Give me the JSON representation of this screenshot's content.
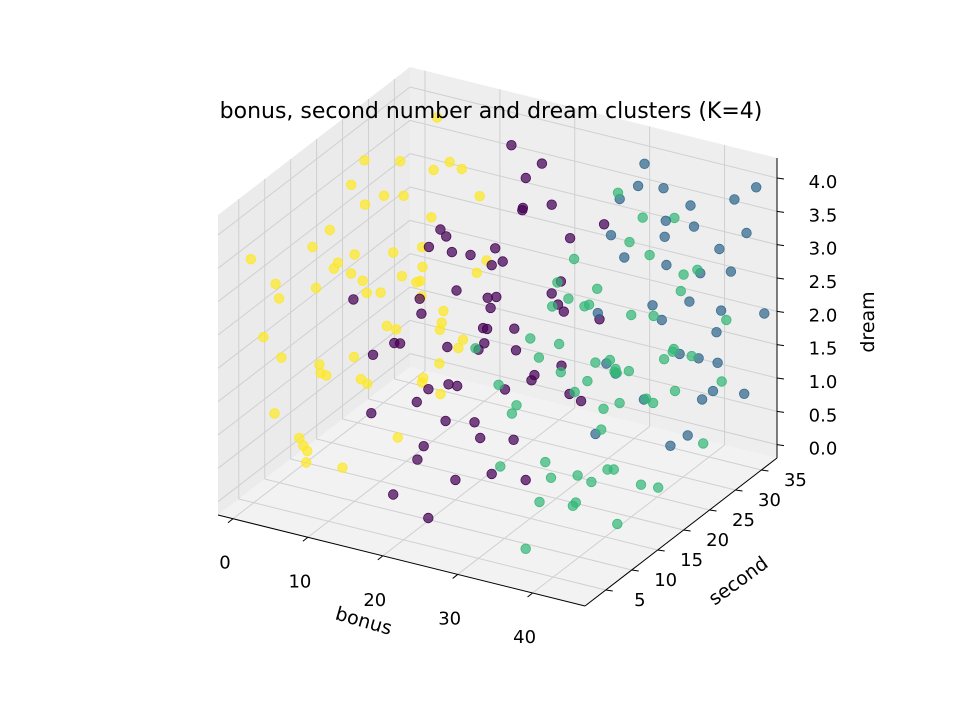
{
  "chart_data": {
    "type": "scatter3d",
    "title": "bonus, second number and dream clusters (K=4)",
    "xlabel": "bonus",
    "ylabel": "second",
    "zlabel": "dream",
    "xlim": [
      -2,
      47
    ],
    "ylim": [
      1,
      38
    ],
    "zlim": [
      -0.2,
      4.3
    ],
    "xticks": [
      "0",
      "10",
      "20",
      "30",
      "40"
    ],
    "yticks": [
      "5",
      "10",
      "15",
      "20",
      "25",
      "30",
      "35"
    ],
    "zticks": [
      "0.0",
      "0.5",
      "1.0",
      "1.5",
      "2.0",
      "2.5",
      "3.0",
      "3.5",
      "4.0"
    ],
    "grid": true,
    "legend": "none",
    "colors": {
      "cluster_0": "#440154",
      "cluster_1": "#31688e",
      "cluster_2": "#35b779",
      "cluster_3": "#fde725",
      "pane": "#f2f2f2",
      "grid": "#d0d0d0"
    },
    "series": [
      {
        "color_key": "cluster_3",
        "points": [
          [
            1,
            3,
            3.6
          ],
          [
            2,
            7,
            2.8
          ],
          [
            3,
            12,
            3.3
          ],
          [
            4,
            18,
            3.9
          ],
          [
            1,
            25,
            3.1
          ],
          [
            5,
            32,
            2.6
          ],
          [
            3,
            36,
            3.8
          ],
          [
            6,
            9,
            1.8
          ],
          [
            2,
            15,
            1.2
          ],
          [
            4,
            21,
            2.1
          ],
          [
            1,
            28,
            1.6
          ],
          [
            5,
            34,
            0.9
          ],
          [
            7,
            5,
            0.6
          ],
          [
            3,
            11,
            0.3
          ],
          [
            6,
            17,
            1.1
          ],
          [
            2,
            24,
            0.5
          ],
          [
            8,
            30,
            1.4
          ],
          [
            4,
            35,
            0.2
          ],
          [
            9,
            13,
            2.9
          ],
          [
            7,
            20,
            3.7
          ],
          [
            8,
            26,
            2.3
          ],
          [
            6,
            31,
            3.4
          ],
          [
            9,
            6,
            1.9
          ],
          [
            10,
            23,
            0.8
          ],
          [
            2,
            4,
            2.4
          ],
          [
            5,
            14,
            3.0
          ],
          [
            7,
            27,
            2.0
          ],
          [
            3,
            33,
            1.3
          ],
          [
            10,
            10,
            3.5
          ],
          [
            8,
            37,
            2.7
          ],
          [
            1,
            19,
            2.5
          ],
          [
            4,
            8,
            0.7
          ],
          [
            6,
            29,
            0.4
          ],
          [
            9,
            35,
            1.7
          ],
          [
            11,
            16,
            3.2
          ],
          [
            5,
            2,
            3.4
          ],
          [
            10,
            30,
            0.9
          ],
          [
            12,
            7,
            2.2
          ],
          [
            3,
            22,
            4.0
          ],
          [
            7,
            12,
            0.1
          ],
          [
            11,
            25,
            1.5
          ],
          [
            2,
            31,
            2.9
          ],
          [
            8,
            3,
            1.0
          ],
          [
            12,
            19,
            2.6
          ],
          [
            5,
            26,
            3.8
          ],
          [
            9,
            28,
            0.3
          ],
          [
            4,
            37,
            3.1
          ],
          [
            11,
            34,
            2.0
          ],
          [
            6,
            22,
            1.6
          ],
          [
            0,
            9,
            0.9
          ],
          [
            13,
            5,
            3.6
          ],
          [
            12,
            28,
            1.2
          ],
          [
            10,
            18,
            1.9
          ],
          [
            1,
            36,
            1.8
          ],
          [
            7,
            35,
            3.2
          ],
          [
            13,
            14,
            0.6
          ],
          [
            8,
            22,
            2.4
          ],
          [
            3,
            6,
            2.0
          ],
          [
            6,
            11,
            3.7
          ],
          [
            0,
            17,
            2.3
          ]
        ]
      },
      {
        "color_key": "cluster_0",
        "points": [
          [
            14,
            4,
            3.3
          ],
          [
            16,
            9,
            2.4
          ],
          [
            18,
            15,
            3.8
          ],
          [
            20,
            22,
            2.9
          ],
          [
            15,
            29,
            1.7
          ],
          [
            19,
            35,
            3.0
          ],
          [
            22,
            6,
            1.2
          ],
          [
            17,
            12,
            0.5
          ],
          [
            21,
            18,
            1.9
          ],
          [
            14,
            24,
            0.8
          ],
          [
            23,
            31,
            2.2
          ],
          [
            16,
            36,
            0.3
          ],
          [
            25,
            8,
            3.5
          ],
          [
            13,
            20,
            3.1
          ],
          [
            24,
            14,
            0.9
          ],
          [
            18,
            27,
            2.6
          ],
          [
            26,
            21,
            1.4
          ],
          [
            15,
            33,
            3.9
          ],
          [
            20,
            3,
            0.6
          ],
          [
            27,
            11,
            2.8
          ],
          [
            22,
            25,
            3.6
          ],
          [
            17,
            31,
            1.0
          ],
          [
            28,
            17,
            0.2
          ],
          [
            19,
            9,
            1.6
          ],
          [
            24,
            29,
            2.0
          ],
          [
            14,
            13,
            2.1
          ],
          [
            21,
            34,
            0.7
          ],
          [
            26,
            5,
            2.3
          ],
          [
            16,
            19,
            3.4
          ],
          [
            23,
            10,
            3.9
          ],
          [
            29,
            24,
            1.1
          ],
          [
            18,
            2,
            2.7
          ],
          [
            25,
            32,
            0.4
          ],
          [
            20,
            15,
            0.1
          ],
          [
            13,
            28,
            2.5
          ],
          [
            27,
            27,
            3.2
          ],
          [
            15,
            6,
            1.5
          ],
          [
            22,
            20,
            2.6
          ],
          [
            28,
            13,
            1.8
          ],
          [
            19,
            30,
            3.7
          ],
          [
            24,
            37,
            1.3
          ],
          [
            17,
            23,
            0.4
          ],
          [
            26,
            35,
            2.9
          ],
          [
            21,
            7,
            3.1
          ],
          [
            14,
            35,
            1.0
          ],
          [
            29,
            9,
            0.8
          ],
          [
            23,
            16,
            2.4
          ],
          [
            16,
            27,
            2.0
          ],
          [
            25,
            19,
            0.6
          ],
          [
            18,
            11,
            3.0
          ],
          [
            22,
            33,
            1.6
          ],
          [
            27,
            3,
            1.9
          ],
          [
            15,
            17,
            1.2
          ],
          [
            20,
            28,
            3.4
          ],
          [
            28,
            22,
            2.7
          ],
          [
            24,
            4,
            0.3
          ],
          [
            17,
            36,
            3.5
          ],
          [
            26,
            14,
            3.8
          ],
          [
            19,
            22,
            1.7
          ],
          [
            21,
            12,
            2.3
          ]
        ]
      },
      {
        "color_key": "cluster_2",
        "points": [
          [
            31,
            3,
            3.1
          ],
          [
            33,
            8,
            2.0
          ],
          [
            35,
            13,
            3.6
          ],
          [
            37,
            19,
            1.4
          ],
          [
            32,
            25,
            2.7
          ],
          [
            36,
            30,
            0.8
          ],
          [
            39,
            6,
            1.2
          ],
          [
            34,
            11,
            0.4
          ],
          [
            38,
            16,
            2.3
          ],
          [
            31,
            22,
            3.3
          ],
          [
            40,
            28,
            1.8
          ],
          [
            33,
            33,
            0.6
          ],
          [
            42,
            9,
            3.7
          ],
          [
            30,
            15,
            2.5
          ],
          [
            41,
            14,
            0.9
          ],
          [
            35,
            24,
            1.6
          ],
          [
            43,
            20,
            2.9
          ],
          [
            32,
            29,
            3.9
          ],
          [
            37,
            4,
            0.2
          ],
          [
            44,
            12,
            2.1
          ],
          [
            39,
            25,
            3.4
          ],
          [
            34,
            35,
            1.1
          ],
          [
            45,
            18,
            0.5
          ],
          [
            36,
            8,
            2.8
          ],
          [
            41,
            27,
            1.3
          ],
          [
            31,
            10,
            1.7
          ],
          [
            38,
            33,
            2.6
          ],
          [
            43,
            5,
            1.0
          ],
          [
            33,
            18,
            3.0
          ],
          [
            40,
            11,
            3.5
          ],
          [
            46,
            23,
            2.2
          ],
          [
            35,
            2,
            1.5
          ],
          [
            42,
            31,
            0.3
          ],
          [
            37,
            14,
            0.7
          ],
          [
            30,
            26,
            1.2
          ],
          [
            44,
            27,
            3.2
          ],
          [
            32,
            6,
            2.4
          ],
          [
            39,
            21,
            1.9
          ],
          [
            45,
            10,
            2.7
          ],
          [
            36,
            28,
            3.7
          ],
          [
            41,
            36,
            0.9
          ],
          [
            34,
            21,
            0.1
          ],
          [
            43,
            34,
            2.0
          ],
          [
            38,
            9,
            3.0
          ],
          [
            31,
            33,
            1.8
          ],
          [
            46,
            8,
            1.4
          ],
          [
            40,
            17,
            2.2
          ],
          [
            33,
            26,
            1.6
          ],
          [
            42,
            19,
            0.4
          ],
          [
            35,
            12,
            3.3
          ],
          [
            39,
            31,
            2.5
          ],
          [
            44,
            3,
            1.1
          ],
          [
            32,
            15,
            0.7
          ],
          [
            37,
            24,
            3.6
          ],
          [
            45,
            21,
            2.4
          ],
          [
            41,
            5,
            2.9
          ],
          [
            34,
            37,
            3.1
          ],
          [
            43,
            13,
            0.2
          ],
          [
            36,
            20,
            1.0
          ],
          [
            38,
            12,
            2.1
          ]
        ]
      },
      {
        "color_key": "cluster_1",
        "points": [
          [
            30,
            37,
            3.8
          ],
          [
            34,
            30,
            4.0
          ],
          [
            38,
            35,
            3.2
          ],
          [
            42,
            37,
            3.6
          ],
          [
            45,
            32,
            2.9
          ],
          [
            28,
            36,
            2.4
          ],
          [
            40,
            33,
            1.4
          ],
          [
            44,
            36,
            0.8
          ],
          [
            36,
            37,
            1.9
          ],
          [
            32,
            34,
            0.5
          ],
          [
            46,
            28,
            1.8
          ],
          [
            29,
            32,
            3.0
          ],
          [
            41,
            30,
            3.9
          ],
          [
            35,
            34,
            2.6
          ],
          [
            39,
            29,
            0.3
          ],
          [
            43,
            33,
            2.2
          ],
          [
            31,
            30,
            1.1
          ],
          [
            37,
            31,
            3.5
          ],
          [
            33,
            36,
            1.6
          ],
          [
            45,
            35,
            3.3
          ],
          [
            27,
            34,
            0.9
          ],
          [
            40,
            37,
            2.8
          ],
          [
            42,
            28,
            0.6
          ],
          [
            36,
            32,
            3.9
          ],
          [
            30,
            28,
            2.1
          ],
          [
            44,
            30,
            1.2
          ],
          [
            26,
            38,
            3.1
          ],
          [
            47,
            34,
            4.1
          ],
          [
            34,
            38,
            1.0
          ],
          [
            38,
            27,
            2.5
          ],
          [
            46,
            37,
            2.0
          ],
          [
            29,
            29,
            0.2
          ],
          [
            43,
            29,
            3.0
          ],
          [
            32,
            38,
            2.7
          ],
          [
            41,
            35,
            1.7
          ],
          [
            37,
            38,
            0.4
          ]
        ]
      }
    ]
  }
}
